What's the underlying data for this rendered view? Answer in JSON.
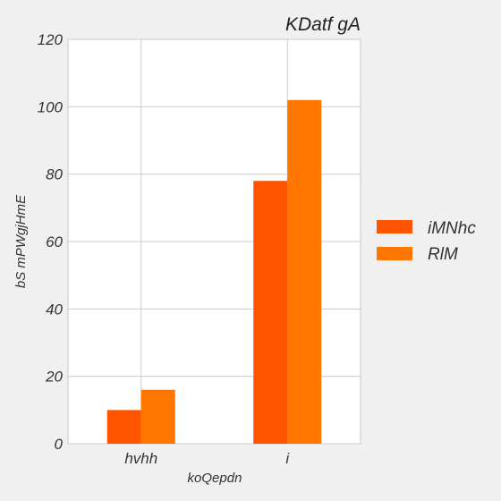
{
  "chart_data": {
    "type": "bar",
    "title": "KDatf gA",
    "xlabel": "koQepdn",
    "ylabel": "bS mPWgjHmE",
    "categories": [
      "hvhh",
      "i"
    ],
    "series": [
      {
        "name": "iMNhc",
        "values": [
          10,
          78
        ],
        "color": "#ff5500"
      },
      {
        "name": "RlM",
        "values": [
          16,
          102
        ],
        "color": "#ff7700"
      }
    ],
    "ylim": [
      0,
      120
    ],
    "yticks": [
      0,
      20,
      40,
      60,
      80,
      100,
      120
    ],
    "grid": true,
    "legend_position": "right"
  }
}
